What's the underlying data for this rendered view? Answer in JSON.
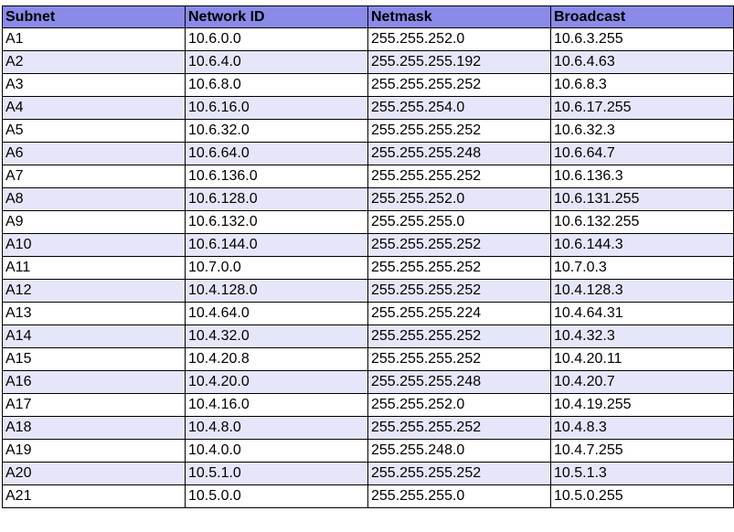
{
  "colors": {
    "header_background": "#8a8ae8",
    "row_background_odd": "#ffffff",
    "row_background_even": "#e6e6fa",
    "border": "#000000"
  },
  "table": {
    "headers": [
      "Subnet",
      "Network ID",
      "Netmask",
      "Broadcast"
    ],
    "rows": [
      [
        "A1",
        "10.6.0.0",
        "255.255.252.0",
        "10.6.3.255"
      ],
      [
        "A2",
        "10.6.4.0",
        "255.255.255.192",
        "10.6.4.63"
      ],
      [
        "A3",
        "10.6.8.0",
        "255.255.255.252",
        "10.6.8.3"
      ],
      [
        "A4",
        "10.6.16.0",
        "255.255.254.0",
        "10.6.17.255"
      ],
      [
        "A5",
        "10.6.32.0",
        "255.255.255.252",
        "10.6.32.3"
      ],
      [
        "A6",
        "10.6.64.0",
        "255.255.255.248",
        "10.6.64.7"
      ],
      [
        "A7",
        "10.6.136.0",
        "255.255.255.252",
        "10.6.136.3"
      ],
      [
        "A8",
        "10.6.128.0",
        "255.255.252.0",
        "10.6.131.255"
      ],
      [
        "A9",
        "10.6.132.0",
        "255.255.255.0",
        "10.6.132.255"
      ],
      [
        "A10",
        "10.6.144.0",
        "255.255.255.252",
        "10.6.144.3"
      ],
      [
        "A11",
        "10.7.0.0",
        "255.255.255.252",
        "10.7.0.3"
      ],
      [
        "A12",
        "10.4.128.0",
        "255.255.255.252",
        "10.4.128.3"
      ],
      [
        "A13",
        "10.4.64.0",
        "255.255.255.224",
        "10.4.64.31"
      ],
      [
        "A14",
        "10.4.32.0",
        "255.255.255.252",
        "10.4.32.3"
      ],
      [
        "A15",
        "10.4.20.8",
        "255.255.255.252",
        "10.4.20.11"
      ],
      [
        "A16",
        "10.4.20.0",
        "255.255.255.248",
        "10.4.20.7"
      ],
      [
        "A17",
        "10.4.16.0",
        "255.255.252.0",
        "10.4.19.255"
      ],
      [
        "A18",
        "10.4.8.0",
        "255.255.255.252",
        "10.4.8.3"
      ],
      [
        "A19",
        "10.4.0.0",
        "255.255.248.0",
        "10.4.7.255"
      ],
      [
        "A20",
        "10.5.1.0",
        "255.255.255.252",
        "10.5.1.3"
      ],
      [
        "A21",
        "10.5.0.0",
        "255.255.255.0",
        "10.5.0.255"
      ]
    ]
  }
}
